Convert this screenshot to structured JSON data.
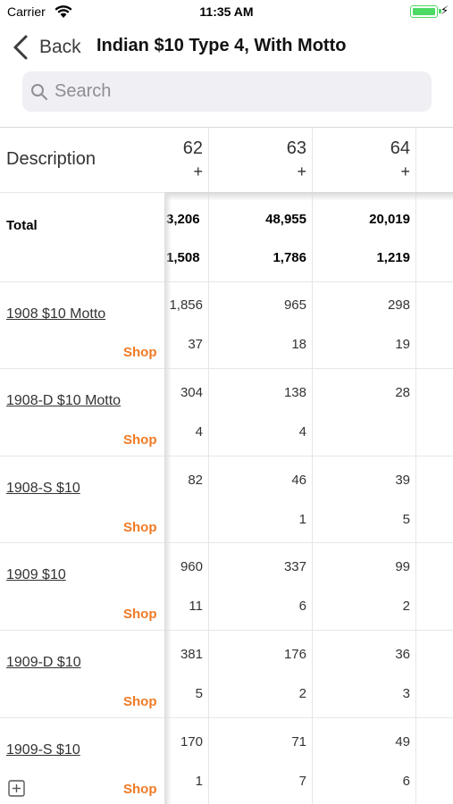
{
  "status_bar": {
    "carrier": "Carrier",
    "time": "11:35 AM",
    "wifi_icon": "wifi-icon",
    "battery_icon": "battery-icon",
    "charging_icon": "charging-bolt-icon"
  },
  "nav": {
    "back_label": "Back",
    "title": "Indian $10 Type 4, With Motto"
  },
  "search": {
    "placeholder": "Search",
    "value": ""
  },
  "table": {
    "description_header": "Description",
    "columns": [
      {
        "label": "62",
        "plus": "+"
      },
      {
        "label": "63",
        "plus": "+"
      },
      {
        "label": "64",
        "plus": "+"
      }
    ],
    "total": {
      "label": "Total",
      "top": [
        "3,206",
        "48,955",
        "20,019"
      ],
      "bottom": [
        "1,508",
        "1,786",
        "1,219"
      ]
    },
    "rows": [
      {
        "label": "1908 $10 Motto",
        "shop": "Shop",
        "top": [
          "1,856",
          "965",
          "298"
        ],
        "bottom": [
          "37",
          "18",
          "19"
        ]
      },
      {
        "label": "1908-D $10 Motto",
        "shop": "Shop",
        "top": [
          "304",
          "138",
          "28"
        ],
        "bottom": [
          "4",
          "4",
          ""
        ]
      },
      {
        "label": "1908-S $10",
        "shop": "Shop",
        "top": [
          "82",
          "46",
          "39"
        ],
        "bottom": [
          "",
          "1",
          "5"
        ]
      },
      {
        "label": "1909 $10",
        "shop": "Shop",
        "top": [
          "960",
          "337",
          "99"
        ],
        "bottom": [
          "11",
          "6",
          "2"
        ]
      },
      {
        "label": "1909-D $10",
        "shop": "Shop",
        "top": [
          "381",
          "176",
          "36"
        ],
        "bottom": [
          "5",
          "2",
          "3"
        ]
      },
      {
        "label": "1909-S $10",
        "shop": "Shop",
        "top": [
          "170",
          "71",
          "49"
        ],
        "bottom": [
          "1",
          "7",
          "6"
        ]
      }
    ]
  },
  "colors": {
    "accent": "#f07a24",
    "battery": "#4cd964",
    "search_bg": "#efeff4"
  }
}
